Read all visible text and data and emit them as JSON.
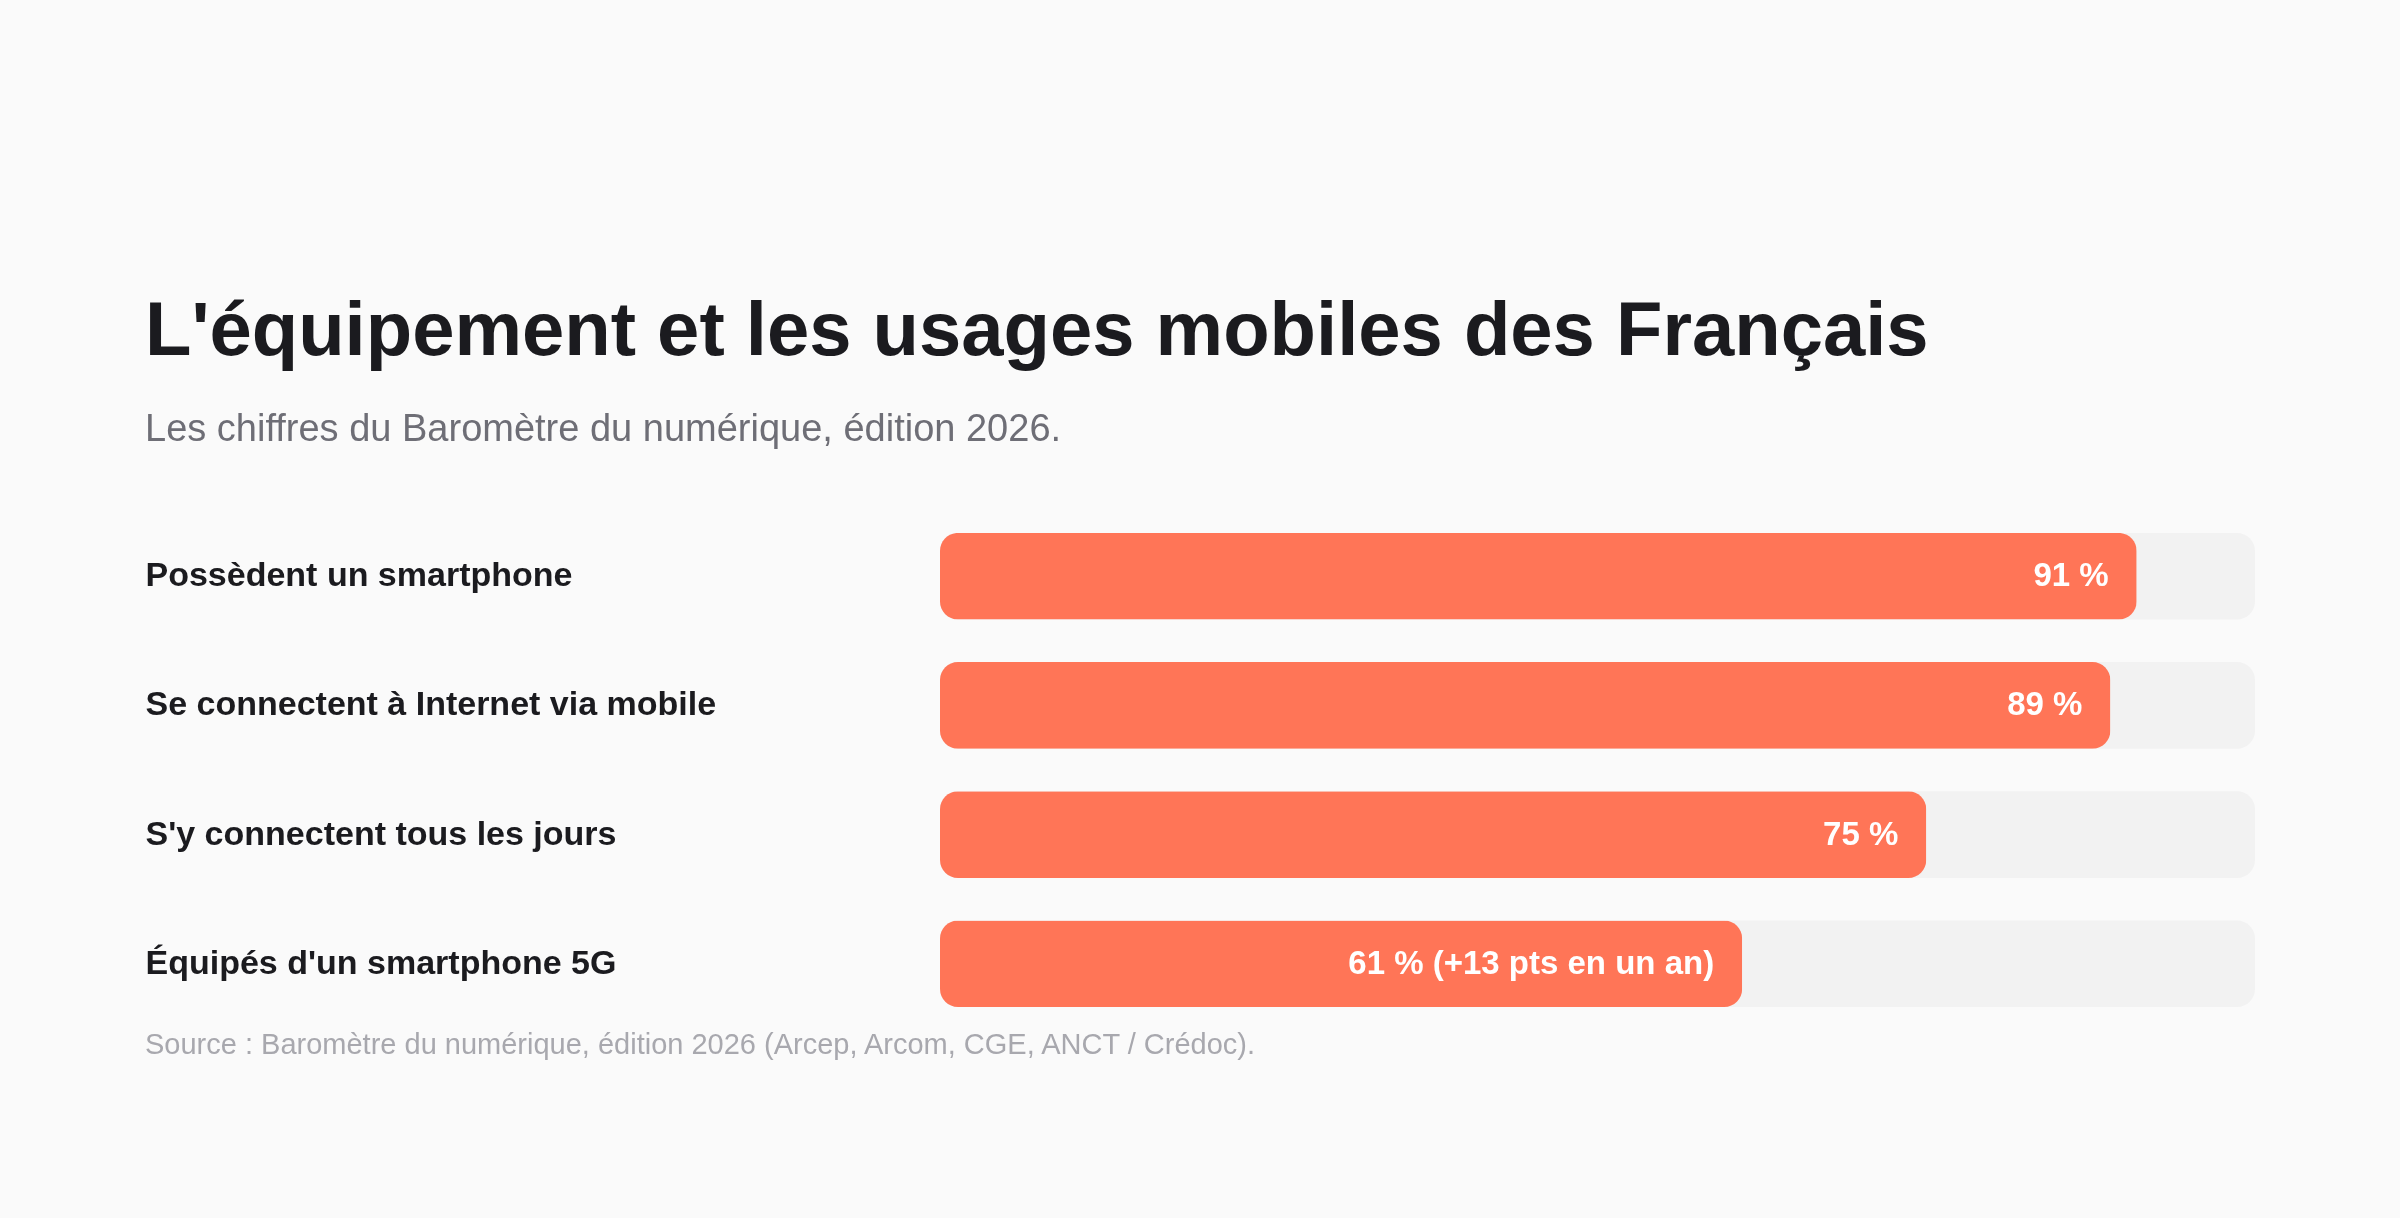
{
  "chart_data": {
    "type": "bar",
    "orientation": "horizontal",
    "title": "L'équipement et les usages mobiles des Français",
    "subtitle": "Les chiffres du Baromètre du numérique, édition 2026.",
    "categories": [
      "Possèdent un smartphone",
      "Se connectent à Internet via mobile",
      "S'y connectent tous les jours",
      "Équipés d'un smartphone 5G"
    ],
    "values": [
      91,
      89,
      75,
      61
    ],
    "value_labels": [
      "91 %",
      "89 %",
      "75 %",
      "61 % (+13 pts en un an)"
    ],
    "color": "#ff7557",
    "xlim": [
      0,
      100
    ],
    "tick_labels": "y",
    "annotations": [
      "Source : Baromètre du numérique, édition 2026 (Arcep, Arcom, CGE, ANCT / Crédoc)."
    ]
  }
}
